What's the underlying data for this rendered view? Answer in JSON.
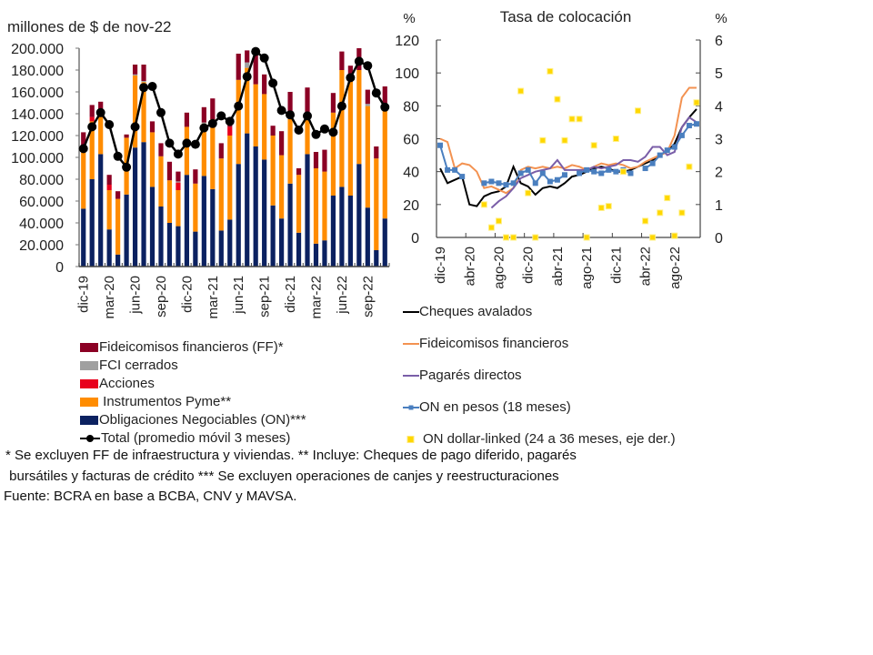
{
  "chart_data": [
    {
      "type": "bar",
      "stacked": true,
      "ylabel": "millones de $ de nov-22",
      "ylim": [
        0,
        200000
      ],
      "yticks": [
        "0",
        "20.000",
        "40.000",
        "60.000",
        "80.000",
        "100.000",
        "120.000",
        "140.000",
        "160.000",
        "180.000",
        "200.000"
      ],
      "ytick_values": [
        0,
        20000,
        40000,
        60000,
        80000,
        100000,
        120000,
        140000,
        160000,
        180000,
        200000
      ],
      "categories": [
        "dic-19",
        "ene-20",
        "feb-20",
        "mar-20",
        "abr-20",
        "may-20",
        "jun-20",
        "jul-20",
        "ago-20",
        "sep-20",
        "oct-20",
        "nov-20",
        "dic-20",
        "ene-21",
        "feb-21",
        "mar-21",
        "abr-21",
        "may-21",
        "jun-21",
        "jul-21",
        "ago-21",
        "sep-21",
        "oct-21",
        "nov-21",
        "dic-21",
        "ene-22",
        "feb-22",
        "mar-22",
        "abr-22",
        "may-22",
        "jun-22",
        "jul-22",
        "ago-22",
        "sep-22",
        "oct-22",
        "nov-22"
      ],
      "xtick_labels": [
        "dic-19",
        "mar-20",
        "jun-20",
        "sep-20",
        "dic-20",
        "mar-21",
        "jun-21",
        "sep-21",
        "dic-21",
        "mar-22",
        "jun-22",
        "sep-22"
      ],
      "series": [
        {
          "name": "Obligaciones Negociables (ON)***",
          "color": "#0b2160",
          "values": [
            53000,
            80000,
            103000,
            34000,
            11000,
            66000,
            109000,
            114000,
            73000,
            55000,
            40000,
            37000,
            84000,
            32000,
            83000,
            71000,
            33000,
            43000,
            94000,
            122000,
            110000,
            98000,
            56000,
            44000,
            76000,
            31000,
            103000,
            21000,
            24000,
            65000,
            73000,
            65000,
            94000,
            54000,
            15000,
            44000
          ]
        },
        {
          "name": "Instrumentos Pyme**",
          "color": "#ff8c00",
          "values": [
            57000,
            53000,
            34000,
            36000,
            51000,
            52000,
            66000,
            55000,
            50000,
            46000,
            39000,
            33000,
            44000,
            44000,
            48000,
            64000,
            66000,
            77000,
            77000,
            60000,
            57000,
            60000,
            64000,
            58000,
            59000,
            53000,
            32000,
            69000,
            63000,
            76000,
            107000,
            108000,
            86000,
            93000,
            84000,
            99000
          ]
        },
        {
          "name": "Acciones",
          "color": "#e8001c",
          "values": [
            0,
            4000,
            0,
            5000,
            0,
            0,
            0,
            0,
            0,
            0,
            0,
            7000,
            0,
            0,
            0,
            0,
            0,
            8000,
            0,
            0,
            0,
            0,
            0,
            0,
            0,
            0,
            0,
            0,
            0,
            0,
            0,
            0,
            0,
            0,
            0,
            0
          ]
        },
        {
          "name": "FCI cerrados",
          "color": "#a0a0a0",
          "values": [
            0,
            0,
            0,
            0,
            0,
            0,
            1000,
            1000,
            0,
            0,
            0,
            1000,
            0,
            0,
            1000,
            0,
            0,
            0,
            0,
            5000,
            0,
            0,
            0,
            0,
            1000,
            0,
            0,
            0,
            0,
            0,
            0,
            0,
            0,
            2000,
            0,
            0
          ]
        },
        {
          "name": "Fideicomisos financieros (FF)*",
          "color": "#8b0024",
          "values": [
            13000,
            11000,
            14000,
            9000,
            7000,
            3000,
            9000,
            15000,
            10000,
            12000,
            17000,
            9000,
            13000,
            13000,
            14000,
            19000,
            14000,
            4000,
            24000,
            11000,
            28000,
            18000,
            9000,
            22000,
            24000,
            6000,
            29000,
            15000,
            20000,
            18000,
            17000,
            11000,
            20000,
            13000,
            11000,
            22000
          ]
        }
      ],
      "line": {
        "name": "Total (promedio móvil 3 meses)",
        "color": "#000000",
        "values": [
          108000,
          128000,
          141000,
          130000,
          101000,
          91000,
          128000,
          164000,
          165000,
          141000,
          113000,
          103000,
          113000,
          112000,
          127000,
          131000,
          138000,
          133000,
          147000,
          174000,
          197000,
          191000,
          168000,
          143000,
          139000,
          125000,
          138000,
          121000,
          126000,
          123000,
          147000,
          173000,
          188000,
          184000,
          159000,
          146000
        ]
      },
      "legend_position": "bottom",
      "legend": [
        "Fideicomisos financieros (FF)*",
        "FCI cerrados",
        "Acciones",
        " Instrumentos Pyme**",
        "Obligaciones Negociables (ON)***",
        "Total (promedio móvil 3 meses)"
      ]
    },
    {
      "type": "line",
      "title": "Tasa de colocación",
      "ylabel": "%",
      "ylabel_right": "%",
      "ylim": [
        0,
        120
      ],
      "ylim_right": [
        0,
        6
      ],
      "yticks": [
        "0",
        "20",
        "40",
        "60",
        "80",
        "100",
        "120"
      ],
      "ytick_values": [
        0,
        20,
        40,
        60,
        80,
        100,
        120
      ],
      "yticks_right": [
        "0",
        "1",
        "2",
        "3",
        "4",
        "5",
        "6"
      ],
      "ytick_values_right": [
        0,
        1,
        2,
        3,
        4,
        5,
        6
      ],
      "x": [
        "dic-19",
        "ene-20",
        "feb-20",
        "mar-20",
        "abr-20",
        "may-20",
        "jun-20",
        "jul-20",
        "ago-20",
        "sep-20",
        "oct-20",
        "nov-20",
        "dic-20",
        "ene-21",
        "feb-21",
        "mar-21",
        "abr-21",
        "may-21",
        "jun-21",
        "jul-21",
        "ago-21",
        "sep-21",
        "oct-21",
        "nov-21",
        "dic-21",
        "ene-22",
        "feb-22",
        "mar-22",
        "abr-22",
        "may-22",
        "jun-22",
        "jul-22",
        "ago-22",
        "sep-22",
        "oct-22",
        "nov-22"
      ],
      "xtick_labels": [
        "dic-19",
        "abr-20",
        "ago-20",
        "dic-20",
        "abr-21",
        "ago-21",
        "dic-21",
        "abr-22",
        "ago-22"
      ],
      "series": [
        {
          "name": "Cheques avalados",
          "color": "#000000",
          "marker": "none",
          "axis": "left",
          "values": [
            42,
            33,
            35,
            37,
            20,
            19,
            25,
            27,
            28,
            31,
            43,
            33,
            31,
            26,
            30,
            31,
            30,
            33,
            37,
            38,
            40,
            42,
            43,
            42,
            40,
            40,
            41,
            43,
            45,
            47,
            50,
            52,
            57,
            67,
            73,
            78
          ]
        },
        {
          "name": "Fideicomisos financieros",
          "color": "#f39251",
          "marker": "none",
          "axis": "left",
          "values": [
            60,
            58,
            42,
            45,
            44,
            40,
            30,
            31,
            29,
            27,
            30,
            41,
            43,
            42,
            43,
            42,
            43,
            42,
            44,
            43,
            41,
            43,
            45,
            44,
            45,
            44,
            42,
            43,
            46,
            48,
            50,
            52,
            62,
            85,
            91,
            91
          ]
        },
        {
          "name": "Pagarés directos",
          "color": "#7a5ea8",
          "marker": "none",
          "axis": "left",
          "values": [
            null,
            null,
            null,
            null,
            null,
            null,
            null,
            18,
            22,
            25,
            30,
            36,
            38,
            40,
            41,
            42,
            47,
            41,
            41,
            41,
            41,
            43,
            42,
            43,
            44,
            47,
            47,
            46,
            49,
            55,
            55,
            50,
            52,
            67,
            73,
            70
          ]
        },
        {
          "name": "ON en pesos (18 meses)",
          "color": "#4a7fbf",
          "marker": "square",
          "axis": "left",
          "values": [
            56,
            41,
            41,
            37,
            null,
            null,
            33,
            34,
            33,
            32,
            33,
            39,
            41,
            33,
            39,
            34,
            35,
            38,
            null,
            39,
            41,
            40,
            39,
            41,
            40,
            41,
            39,
            null,
            42,
            45,
            50,
            53,
            55,
            62,
            68,
            69
          ]
        },
        {
          "name": "ON dollar-linked (24 a 36 meses, eje der.)",
          "color": "#ffd700",
          "marker": "square",
          "axis": "right",
          "values": [
            null,
            null,
            null,
            null,
            null,
            null,
            1.0,
            0.3,
            0.5,
            0.0,
            0.0,
            4.45,
            1.35,
            0.0,
            2.95,
            5.05,
            4.2,
            2.95,
            3.6,
            3.6,
            0.0,
            2.8,
            0.9,
            0.95,
            3.0,
            2.0,
            null,
            3.85,
            0.5,
            0.0,
            0.75,
            1.2,
            0.05,
            0.75,
            2.15,
            4.1
          ]
        }
      ],
      "legend_position": "bottom",
      "legend": [
        "Cheques avalados",
        "Fideicomisos financieros",
        "Pagarés directos",
        "ON en pesos (18 meses)",
        "ON dollar-linked (24 a 36 meses, eje der.)"
      ]
    }
  ],
  "footnotes": {
    "line1": "* Se excluyen FF de infraestructura y viviendas. ** Incluye: Cheques de pago diferido, pagarés",
    "line2": " bursátiles y facturas de crédito *** Se excluyen operaciones de canjes y reestructuraciones",
    "source": "Fuente: BCRA en base a BCBA, CNV y MAVSA."
  }
}
